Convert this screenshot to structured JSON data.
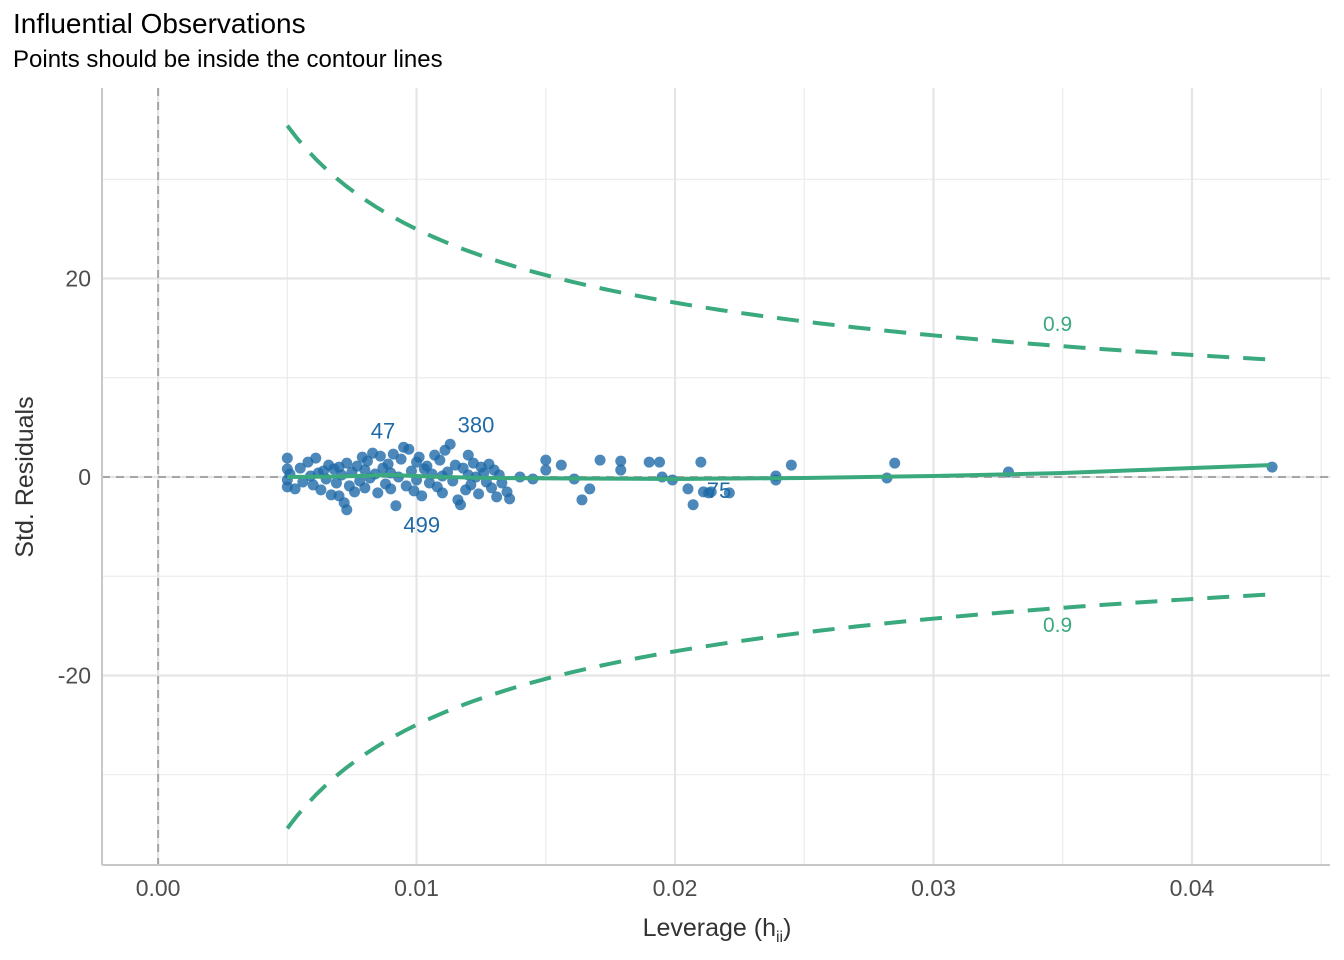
{
  "chart_data": {
    "type": "scatter",
    "title": "Influential Observations",
    "subtitle": "Points should be inside the contour lines",
    "xlabel": "Leverage (h",
    "xlabel_sub": "ii",
    "xlabel_end": ")",
    "ylabel": "Std. Residuals",
    "xlim": [
      -0.00217,
      0.04534
    ],
    "ylim": [
      -39.1,
      39.2
    ],
    "x_ticks": [
      0.0,
      0.01,
      0.02,
      0.03,
      0.04
    ],
    "x_tick_labels": [
      "0.00",
      "0.01",
      "0.02",
      "0.03",
      "0.04"
    ],
    "x_minor": [
      0.005,
      0.015,
      0.025,
      0.035,
      0.045
    ],
    "y_ticks": [
      -20,
      0,
      20
    ],
    "y_tick_labels": [
      "-20",
      "0",
      "20"
    ],
    "y_minor": [
      -30,
      -10,
      10,
      30
    ],
    "grid": true,
    "colors": {
      "points": "#1f6aa8",
      "contour": "#3aaa7e",
      "smooth": "#3aaa7e",
      "reference": "#a6a6a6",
      "label": "#1f6aa8"
    },
    "contour": {
      "cooks_distance": 0.9,
      "label": "0.9",
      "params": 7,
      "h_range": [
        0.005,
        0.043
      ],
      "label_upper": [
        0.0348,
        15.5
      ],
      "label_lower": [
        0.0348,
        -14.8
      ]
    },
    "smooth": [
      [
        0.005,
        0
      ],
      [
        0.007,
        0.05
      ],
      [
        0.009,
        0.2
      ],
      [
        0.011,
        0.0
      ],
      [
        0.013,
        -0.1
      ],
      [
        0.016,
        -0.15
      ],
      [
        0.02,
        -0.2
      ],
      [
        0.025,
        -0.1
      ],
      [
        0.03,
        0.1
      ],
      [
        0.035,
        0.4
      ],
      [
        0.039,
        0.8
      ],
      [
        0.043,
        1.2
      ]
    ],
    "labels": [
      {
        "text": "47",
        "x": 0.0087,
        "y": 4.7
      },
      {
        "text": "380",
        "x": 0.0123,
        "y": 5.3
      },
      {
        "text": "499",
        "x": 0.0102,
        "y": -4.8
      },
      {
        "text": "75",
        "x": 0.0217,
        "y": -1.3
      }
    ],
    "points": [
      [
        0.005,
        1.9
      ],
      [
        0.005,
        0.8
      ],
      [
        0.005,
        -0.3
      ],
      [
        0.005,
        -1.0
      ],
      [
        0.0051,
        0.3
      ],
      [
        0.0053,
        -1.2
      ],
      [
        0.0055,
        0.9
      ],
      [
        0.0056,
        -0.5
      ],
      [
        0.0058,
        1.5
      ],
      [
        0.0059,
        0.1
      ],
      [
        0.006,
        -0.8
      ],
      [
        0.0061,
        1.9
      ],
      [
        0.0062,
        0.4
      ],
      [
        0.0063,
        -1.3
      ],
      [
        0.0064,
        0.6
      ],
      [
        0.0065,
        -0.2
      ],
      [
        0.0066,
        1.2
      ],
      [
        0.0067,
        -1.8
      ],
      [
        0.0068,
        0.8
      ],
      [
        0.0069,
        -0.6
      ],
      [
        0.007,
        1.0
      ],
      [
        0.007,
        -1.9
      ],
      [
        0.0071,
        0.2
      ],
      [
        0.0072,
        -2.6
      ],
      [
        0.0073,
        -3.3
      ],
      [
        0.0073,
        1.4
      ],
      [
        0.0074,
        -0.9
      ],
      [
        0.0075,
        0.5
      ],
      [
        0.0076,
        -1.5
      ],
      [
        0.0077,
        1.1
      ],
      [
        0.0078,
        -0.4
      ],
      [
        0.0079,
        2.0
      ],
      [
        0.008,
        0.7
      ],
      [
        0.008,
        -1.1
      ],
      [
        0.0081,
        1.6
      ],
      [
        0.0082,
        -0.1
      ],
      [
        0.0083,
        2.4
      ],
      [
        0.0084,
        0.3
      ],
      [
        0.0085,
        -1.6
      ],
      [
        0.0086,
        2.1
      ],
      [
        0.0087,
        0.9
      ],
      [
        0.0088,
        -0.7
      ],
      [
        0.0089,
        1.3
      ],
      [
        0.009,
        -1.2
      ],
      [
        0.009,
        0.4
      ],
      [
        0.0091,
        2.3
      ],
      [
        0.0092,
        -2.9
      ],
      [
        0.0093,
        0.0
      ],
      [
        0.0094,
        1.8
      ],
      [
        0.0095,
        3.0
      ],
      [
        0.0096,
        -0.9
      ],
      [
        0.0097,
        2.8
      ],
      [
        0.0098,
        0.6
      ],
      [
        0.0099,
        -1.4
      ],
      [
        0.01,
        1.5
      ],
      [
        0.01,
        -0.3
      ],
      [
        0.0101,
        2.0
      ],
      [
        0.0102,
        -1.9
      ],
      [
        0.0103,
        0.8
      ],
      [
        0.0104,
        1.1
      ],
      [
        0.0105,
        -0.6
      ],
      [
        0.0106,
        0.3
      ],
      [
        0.0107,
        2.2
      ],
      [
        0.0108,
        -1.0
      ],
      [
        0.0109,
        1.7
      ],
      [
        0.011,
        0.1
      ],
      [
        0.011,
        -1.6
      ],
      [
        0.0111,
        2.7
      ],
      [
        0.0112,
        0.5
      ],
      [
        0.0113,
        3.3
      ],
      [
        0.0114,
        -0.4
      ],
      [
        0.0115,
        1.2
      ],
      [
        0.0116,
        -2.3
      ],
      [
        0.0117,
        -2.8
      ],
      [
        0.0118,
        0.9
      ],
      [
        0.0119,
        -1.3
      ],
      [
        0.012,
        2.2
      ],
      [
        0.012,
        0.2
      ],
      [
        0.0121,
        -0.8
      ],
      [
        0.0122,
        1.4
      ],
      [
        0.0123,
        0.0
      ],
      [
        0.0124,
        -1.7
      ],
      [
        0.0125,
        1.0
      ],
      [
        0.0126,
        0.4
      ],
      [
        0.0127,
        -0.5
      ],
      [
        0.0128,
        1.3
      ],
      [
        0.0129,
        -1.1
      ],
      [
        0.013,
        0.7
      ],
      [
        0.0131,
        -2.0
      ],
      [
        0.0132,
        0.2
      ],
      [
        0.0133,
        -0.6
      ],
      [
        0.0135,
        -1.5
      ],
      [
        0.0136,
        -2.2
      ],
      [
        0.014,
        0.0
      ],
      [
        0.0145,
        -0.2
      ],
      [
        0.015,
        1.7
      ],
      [
        0.015,
        0.7
      ],
      [
        0.0156,
        1.2
      ],
      [
        0.0161,
        -0.2
      ],
      [
        0.0164,
        -2.3
      ],
      [
        0.0167,
        -1.2
      ],
      [
        0.0171,
        1.7
      ],
      [
        0.0179,
        1.6
      ],
      [
        0.0179,
        0.7
      ],
      [
        0.019,
        1.5
      ],
      [
        0.0194,
        1.5
      ],
      [
        0.0195,
        0.0
      ],
      [
        0.0199,
        -0.3
      ],
      [
        0.0205,
        -1.2
      ],
      [
        0.0207,
        -2.8
      ],
      [
        0.021,
        1.5
      ],
      [
        0.0211,
        -1.5
      ],
      [
        0.0213,
        -1.6
      ],
      [
        0.0214,
        -1.5
      ],
      [
        0.0221,
        -1.6
      ],
      [
        0.0239,
        0.1
      ],
      [
        0.0239,
        -0.3
      ],
      [
        0.0245,
        1.2
      ],
      [
        0.0282,
        -0.1
      ],
      [
        0.0285,
        1.4
      ],
      [
        0.0329,
        0.5
      ],
      [
        0.0431,
        1.0
      ]
    ]
  }
}
